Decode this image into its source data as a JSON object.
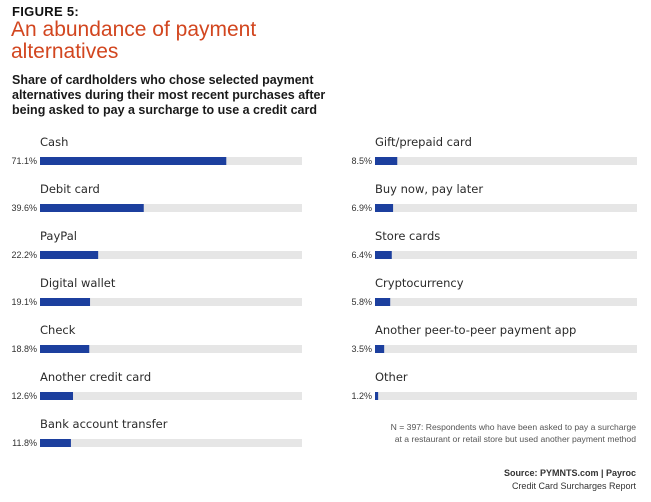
{
  "figure_label": "FIGURE 5:",
  "title": "An abundance of payment alternatives",
  "subtitle": "Share of cardholders who chose selected payment alternatives during their most recent purchases after being asked to pay a surcharge to use a credit card",
  "note": "N = 397: Respondents who have been asked to pay a surcharge at a restaurant or retail store but used another payment method",
  "source_line": "Source: PYMNTS.com  |  Payroc",
  "source_report": "Credit Card Surcharges Report",
  "colors": {
    "bar": "#1c3f9e",
    "track": "#e6e6e6",
    "title": "#d2461f"
  },
  "chart_data": {
    "type": "bar",
    "orientation": "horizontal",
    "xlim": [
      0,
      100
    ],
    "grid": false,
    "columns": [
      {
        "categories": [
          "Cash",
          "Debit card",
          "PayPal",
          "Digital wallet",
          "Check",
          "Another credit card",
          "Bank account transfer"
        ],
        "values": [
          71.1,
          39.6,
          22.2,
          19.1,
          18.8,
          12.6,
          11.8
        ],
        "value_labels": [
          "71.1%",
          "39.6%",
          "22.2%",
          "19.1%",
          "18.8%",
          "12.6%",
          "11.8%"
        ]
      },
      {
        "categories": [
          "Gift/prepaid card",
          "Buy now, pay later",
          "Store cards",
          "Cryptocurrency",
          "Another peer-to-peer payment app",
          "Other"
        ],
        "values": [
          8.5,
          6.9,
          6.4,
          5.8,
          3.5,
          1.2
        ],
        "value_labels": [
          "8.5%",
          "6.9%",
          "6.4%",
          "5.8%",
          "3.5%",
          "1.2%"
        ]
      }
    ]
  }
}
